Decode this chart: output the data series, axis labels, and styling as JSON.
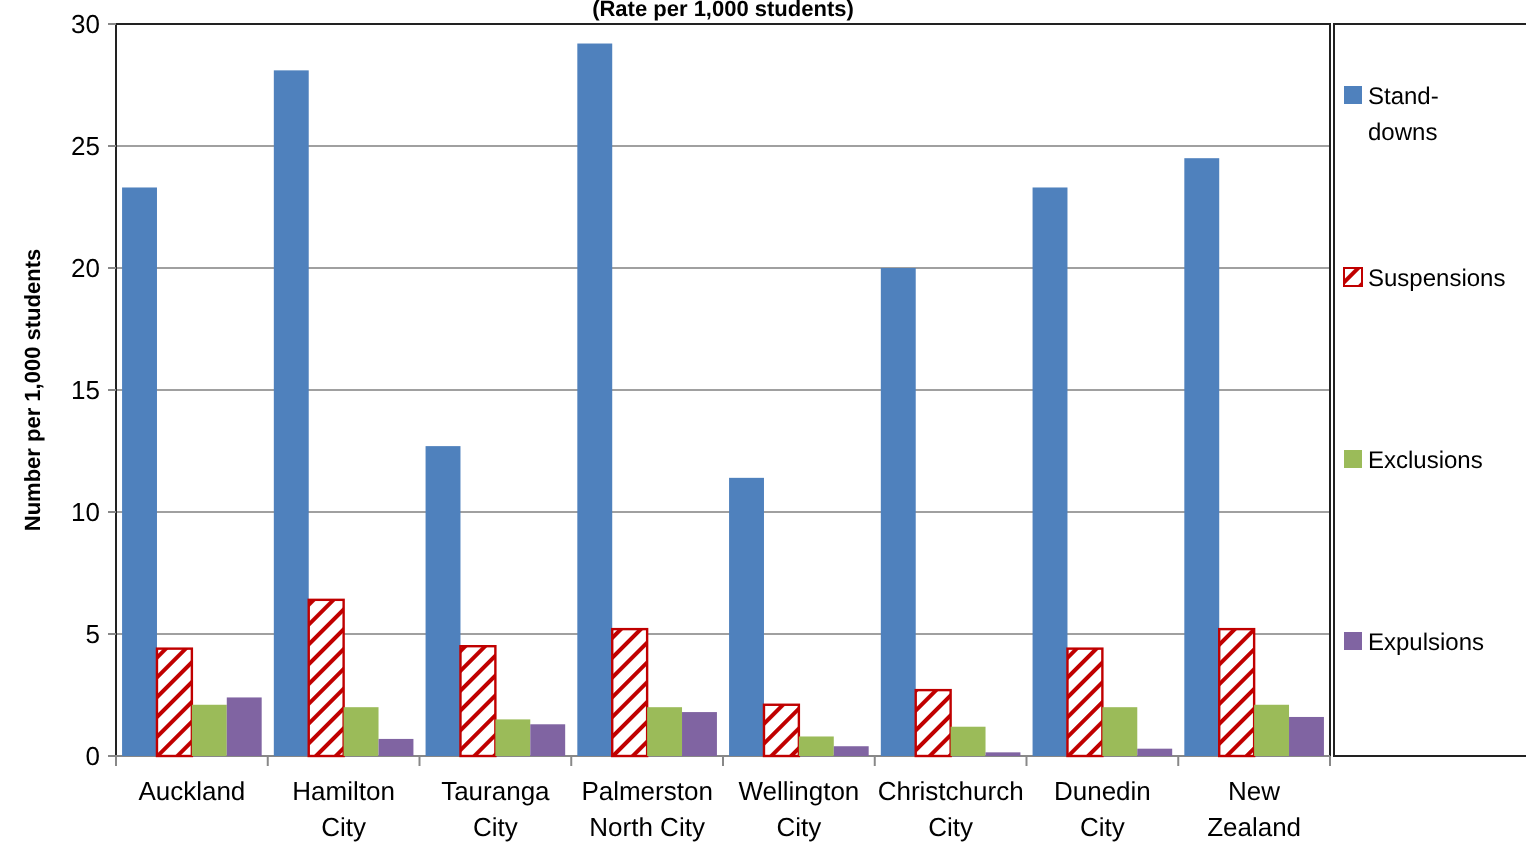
{
  "chart_data": {
    "type": "bar",
    "title": "(Rate per 1,000 students)",
    "ylabel": "Number per 1,000 students",
    "categories": [
      "Auckland",
      "Hamilton City",
      "Tauranga City",
      "Palmerston North City",
      "Wellington City",
      "Christchurch City",
      "Dunedin City",
      "New Zealand"
    ],
    "series": [
      {
        "name": "Stand-downs",
        "color": "#4f81bd",
        "values": [
          23.3,
          28.1,
          12.7,
          29.2,
          11.4,
          20.0,
          23.3,
          24.5
        ]
      },
      {
        "name": "Suspensions",
        "color": "#c00000",
        "values": [
          4.4,
          6.4,
          4.5,
          5.2,
          2.1,
          2.7,
          4.4,
          5.2
        ]
      },
      {
        "name": "Exclusions",
        "color": "#9bbb59",
        "values": [
          2.1,
          2.0,
          1.5,
          2.0,
          0.8,
          1.2,
          2.0,
          2.1
        ]
      },
      {
        "name": "Expulsions",
        "color": "#8064a2",
        "values": [
          2.4,
          0.7,
          1.3,
          1.8,
          0.4,
          0.15,
          0.3,
          1.6
        ]
      }
    ],
    "ylim": [
      0,
      30
    ],
    "yticks": [
      0,
      5,
      10,
      15,
      20,
      25,
      30
    ],
    "grid": "y",
    "legend": "right"
  }
}
